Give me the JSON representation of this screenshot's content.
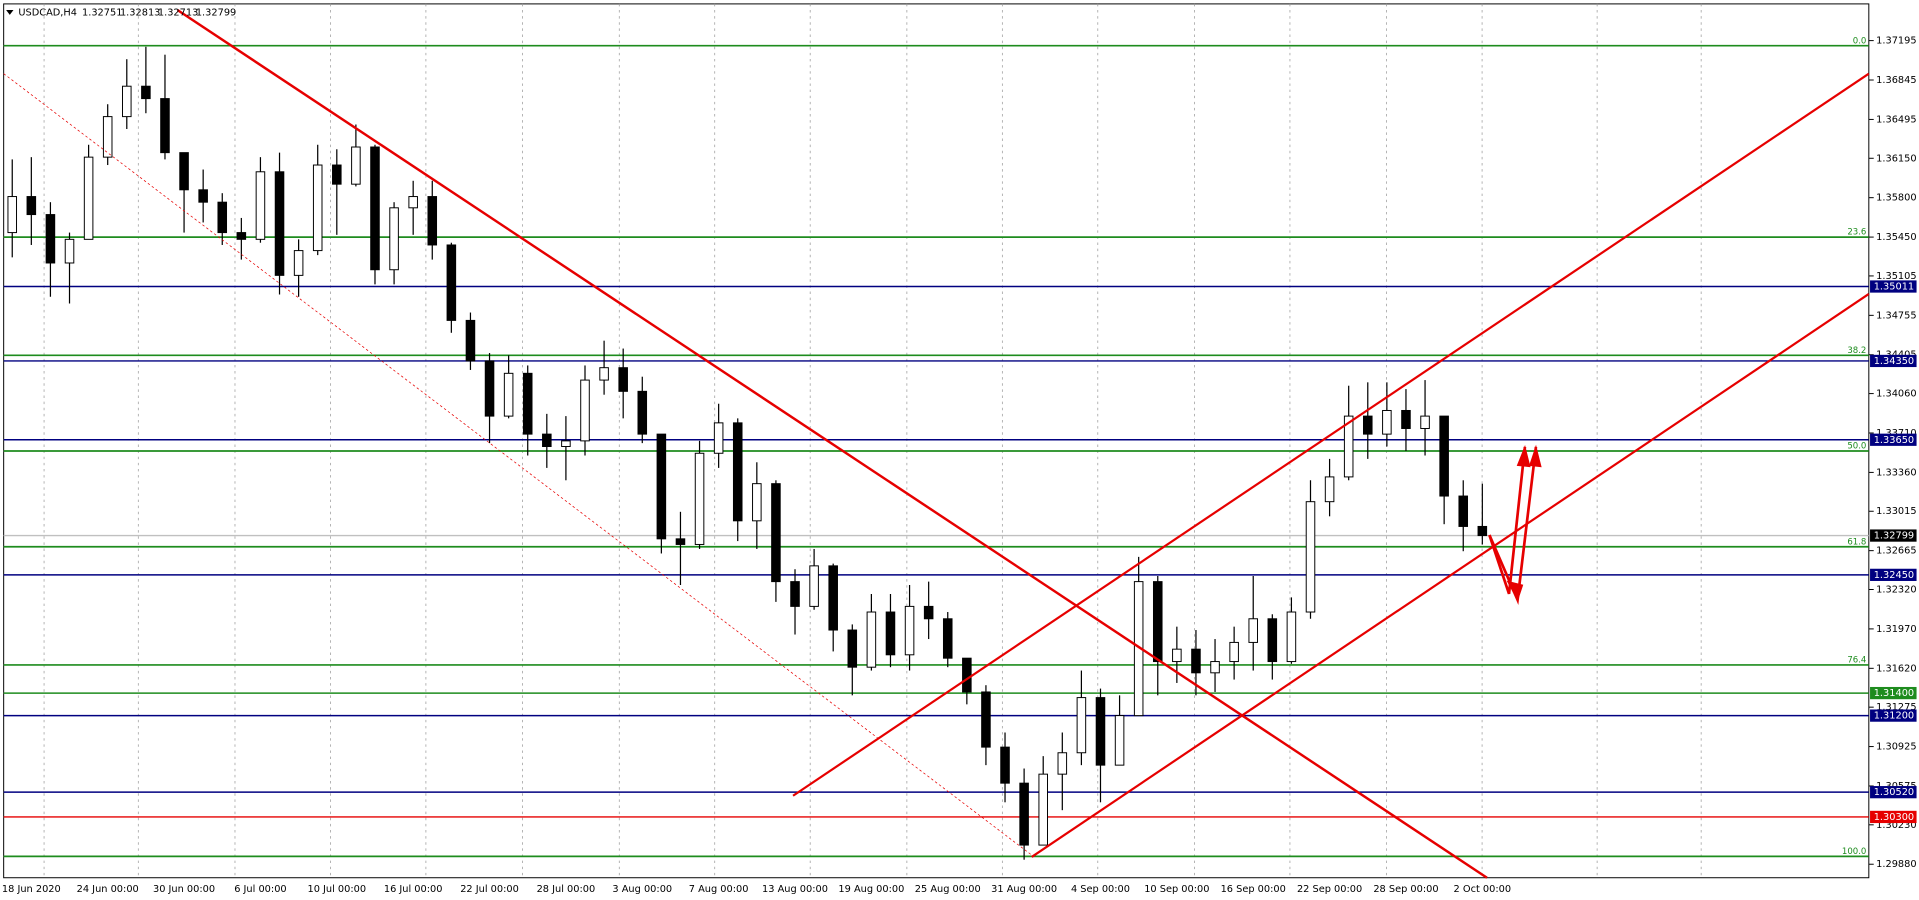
{
  "chart_data": {
    "type": "candlestick",
    "title": "USDCAD,H4",
    "quote": [
      1.32751,
      1.32813,
      1.32713,
      1.32799
    ],
    "categories": [
      null,
      "18 Jun 2020",
      null,
      null,
      null,
      "24 Jun 00:00",
      null,
      null,
      null,
      "30 Jun 00:00",
      null,
      null,
      null,
      "6 Jul 00:00",
      null,
      null,
      null,
      "10 Jul 00:00",
      null,
      null,
      null,
      "16 Jul 00:00",
      null,
      null,
      null,
      "22 Jul 00:00",
      null,
      null,
      null,
      "28 Jul 00:00",
      null,
      null,
      null,
      "3 Aug 00:00",
      null,
      null,
      null,
      "7 Aug 00:00",
      null,
      null,
      null,
      "13 Aug 00:00",
      null,
      null,
      null,
      "19 Aug 00:00",
      null,
      null,
      null,
      "25 Aug 00:00",
      null,
      null,
      null,
      "31 Aug 00:00",
      null,
      null,
      null,
      "4 Sep 00:00",
      null,
      null,
      null,
      "10 Sep 00:00",
      null,
      null,
      null,
      "16 Sep 00:00",
      null,
      null,
      null,
      "22 Sep 00:00",
      null,
      null,
      null,
      "28 Sep 00:00",
      null,
      null,
      null,
      "2 Oct 00:00"
    ],
    "open": [
      1.3549,
      1.3581,
      1.3565,
      1.3522,
      1.3543,
      1.3616,
      1.3652,
      1.3679,
      1.3668,
      1.362,
      1.3587,
      1.3576,
      1.3549,
      1.3543,
      1.3603,
      1.3511,
      1.3533,
      1.3609,
      1.3592,
      1.3625,
      1.3516,
      1.3571,
      1.3581,
      1.3538,
      1.3471,
      1.3435,
      1.3386,
      1.3424,
      1.337,
      1.3359,
      1.3364,
      1.3418,
      1.3429,
      1.3408,
      1.337,
      1.3277,
      1.3272,
      1.3353,
      1.338,
      1.3293,
      1.3326,
      1.3239,
      1.3217,
      1.3253,
      1.3196,
      1.3163,
      1.3212,
      1.3174,
      1.3217,
      1.3206,
      1.3171,
      1.3141,
      1.3092,
      1.306,
      1.3005,
      1.3068,
      1.3087,
      1.3136,
      1.3076,
      1.312,
      1.3239,
      1.3168,
      1.3179,
      1.3158,
      1.3168,
      1.3185,
      1.3206,
      1.3168,
      1.3212,
      1.331,
      1.3332,
      1.3386,
      1.337,
      1.3391,
      1.3375,
      1.3386,
      1.3315,
      1.3288
    ],
    "high": [
      1.3614,
      1.3616,
      1.3576,
      1.3549,
      1.3627,
      1.3663,
      1.3703,
      1.3714,
      1.3707,
      1.362,
      1.3605,
      1.3584,
      1.3562,
      1.3616,
      1.362,
      1.3543,
      1.3627,
      1.3623,
      1.3645,
      1.3627,
      1.3576,
      1.3595,
      1.3595,
      1.354,
      1.3478,
      1.3442,
      1.344,
      1.3431,
      1.3388,
      1.3386,
      1.3431,
      1.3453,
      1.3446,
      1.3421,
      1.337,
      1.3301,
      1.3364,
      1.3397,
      1.3384,
      1.3345,
      1.3329,
      1.325,
      1.3268,
      1.3255,
      1.3201,
      1.3228,
      1.3228,
      1.3236,
      1.3239,
      1.3212,
      1.3171,
      1.3147,
      1.3105,
      1.3073,
      1.3084,
      1.3105,
      1.316,
      1.3144,
      1.3138,
      1.3261,
      1.3244,
      1.3199,
      1.3196,
      1.3188,
      1.3199,
      1.3244,
      1.321,
      1.3225,
      1.3329,
      1.3348,
      1.3413,
      1.3416,
      1.3416,
      1.341,
      1.3418,
      1.3386,
      1.3329,
      1.3326
    ],
    "low": [
      1.3527,
      1.3538,
      1.3492,
      1.3486,
      1.3543,
      1.3609,
      1.3641,
      1.3655,
      1.3614,
      1.3549,
      1.3558,
      1.3538,
      1.3525,
      1.354,
      1.3494,
      1.3492,
      1.3529,
      1.3547,
      1.359,
      1.3503,
      1.3503,
      1.3547,
      1.3525,
      1.346,
      1.3427,
      1.3362,
      1.3384,
      1.3351,
      1.334,
      1.3329,
      1.3351,
      1.3405,
      1.3384,
      1.3362,
      1.3264,
      1.3236,
      1.3268,
      1.334,
      1.3275,
      1.3268,
      1.3221,
      1.3192,
      1.3214,
      1.3177,
      1.3138,
      1.316,
      1.3163,
      1.316,
      1.3188,
      1.3163,
      1.313,
      1.3076,
      1.3043,
      1.2992,
      1.3005,
      1.3036,
      1.3076,
      1.3043,
      1.3076,
      1.312,
      1.3138,
      1.3149,
      1.3138,
      1.3141,
      1.3152,
      1.316,
      1.3152,
      1.3166,
      1.3206,
      1.3297,
      1.3329,
      1.3348,
      1.3359,
      1.3355,
      1.3351,
      1.329,
      1.3266,
      1.3272
    ],
    "close": [
      1.3581,
      1.3565,
      1.3522,
      1.3543,
      1.3616,
      1.3652,
      1.3679,
      1.3668,
      1.362,
      1.3587,
      1.3576,
      1.3549,
      1.3543,
      1.3603,
      1.3511,
      1.3533,
      1.3609,
      1.3592,
      1.3625,
      1.3516,
      1.3571,
      1.3581,
      1.3538,
      1.3471,
      1.3435,
      1.3386,
      1.3424,
      1.337,
      1.3359,
      1.3364,
      1.3418,
      1.3429,
      1.3408,
      1.337,
      1.3277,
      1.3272,
      1.3353,
      1.338,
      1.3293,
      1.3326,
      1.3239,
      1.3217,
      1.3253,
      1.3196,
      1.3163,
      1.3212,
      1.3174,
      1.3217,
      1.3206,
      1.3171,
      1.3141,
      1.3092,
      1.306,
      1.3005,
      1.3068,
      1.3087,
      1.3136,
      1.3076,
      1.312,
      1.3239,
      1.3168,
      1.3179,
      1.3158,
      1.3168,
      1.3185,
      1.3206,
      1.3168,
      1.3212,
      1.331,
      1.3332,
      1.3386,
      1.337,
      1.3391,
      1.3375,
      1.3386,
      1.3315,
      1.3288,
      1.32799
    ],
    "ylim": [
      1.2976,
      1.37521
    ],
    "yticks": [
      1.37195,
      1.36845,
      1.36495,
      {
        "value": 1.3615,
        "label": "1.36150"
      },
      {
        "value": 1.358,
        "label": "1.35800"
      },
      {
        "value": 1.3545,
        "label": "1.35450"
      },
      1.35105,
      1.34755,
      1.34405,
      {
        "value": 1.3406,
        "label": "1.34060"
      },
      {
        "value": 1.3371,
        "label": "1.33710"
      },
      {
        "value": 1.3336,
        "label": "1.33360"
      },
      1.33015,
      1.32665,
      {
        "value": 1.3232,
        "label": "1.32320"
      },
      {
        "value": 1.3197,
        "label": "1.31970"
      },
      {
        "value": 1.3162,
        "label": "1.31620"
      },
      1.31275,
      1.30925,
      1.30575,
      {
        "value": 1.3023,
        "label": "1.30230"
      },
      {
        "value": 1.2988,
        "label": "1.29880"
      }
    ],
    "fib": {
      "color": "#1e8c1e",
      "labels": [
        "0.0",
        "23.6",
        "38.2",
        "50.0",
        "61.8",
        "76.4",
        "100.0"
      ],
      "values": [
        1.3715,
        1.3545,
        1.344,
        1.3355,
        1.327,
        1.3165,
        1.2995
      ]
    },
    "levels": [
      {
        "value": 1.35011,
        "label": "1.35011",
        "color": "#000080"
      },
      {
        "value": 1.3435,
        "label": "1.34350",
        "color": "#000080"
      },
      {
        "value": 1.3365,
        "label": "1.33650",
        "color": "#000080"
      },
      {
        "value": 1.32799,
        "label": "1.32799",
        "color": "#000000"
      },
      {
        "value": 1.3245,
        "label": "1.32450",
        "color": "#000080"
      },
      {
        "value": 1.314,
        "label": "1.31400",
        "color": "#1e8c1e"
      },
      {
        "value": 1.312,
        "label": "1.31200",
        "color": "#000080"
      },
      {
        "value": 1.3052,
        "label": "1.30520",
        "color": "#000080"
      },
      {
        "value": 1.303,
        "label": "1.30300",
        "color": "#e60000"
      }
    ],
    "up_color": "#ffffff",
    "down_color": "#000000"
  }
}
